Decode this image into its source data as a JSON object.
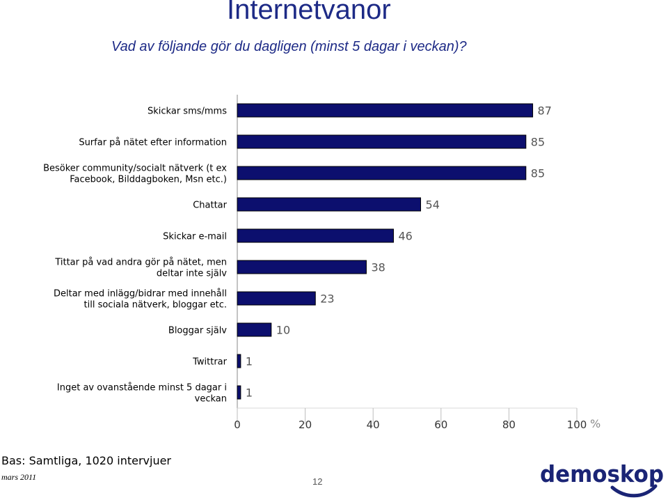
{
  "title": "Internetvanor",
  "subtitle": "Vad av följande gör du dagligen (minst 5 dagar i veckan)?",
  "footer": {
    "base": "Bas: Samtliga, 1020 intervjuer",
    "date": "mars 2011",
    "page_number": "12"
  },
  "logo": {
    "text": "demoskop"
  },
  "colors": {
    "bar_fill": "#0c0f6e",
    "bar_outline": "#000000",
    "title": "#1d2a86",
    "logo": "#1a2475"
  },
  "chart_data": {
    "type": "bar",
    "orientation": "horizontal",
    "categories": [
      [
        "Skickar sms/mms"
      ],
      [
        "Surfar på nätet efter information"
      ],
      [
        "Besöker community/socialt nätverk (t ex",
        "Facebook, Bilddagboken, Msn etc.)"
      ],
      [
        "Chattar"
      ],
      [
        "Skickar e-mail"
      ],
      [
        "Tittar på vad andra gör på nätet, men",
        "deltar inte själv"
      ],
      [
        "Deltar med inlägg/bidrar med innehåll",
        "till sociala nätverk, bloggar etc."
      ],
      [
        "Bloggar själv"
      ],
      [
        "Twittrar"
      ],
      [
        "Inget av ovanstående minst 5 dagar i",
        "veckan"
      ]
    ],
    "values": [
      87,
      85,
      85,
      54,
      46,
      38,
      23,
      10,
      1,
      1
    ],
    "xlim": [
      0,
      100
    ],
    "xticks": [
      0,
      20,
      40,
      60,
      80,
      100
    ],
    "x_unit": "%",
    "grid": false
  }
}
